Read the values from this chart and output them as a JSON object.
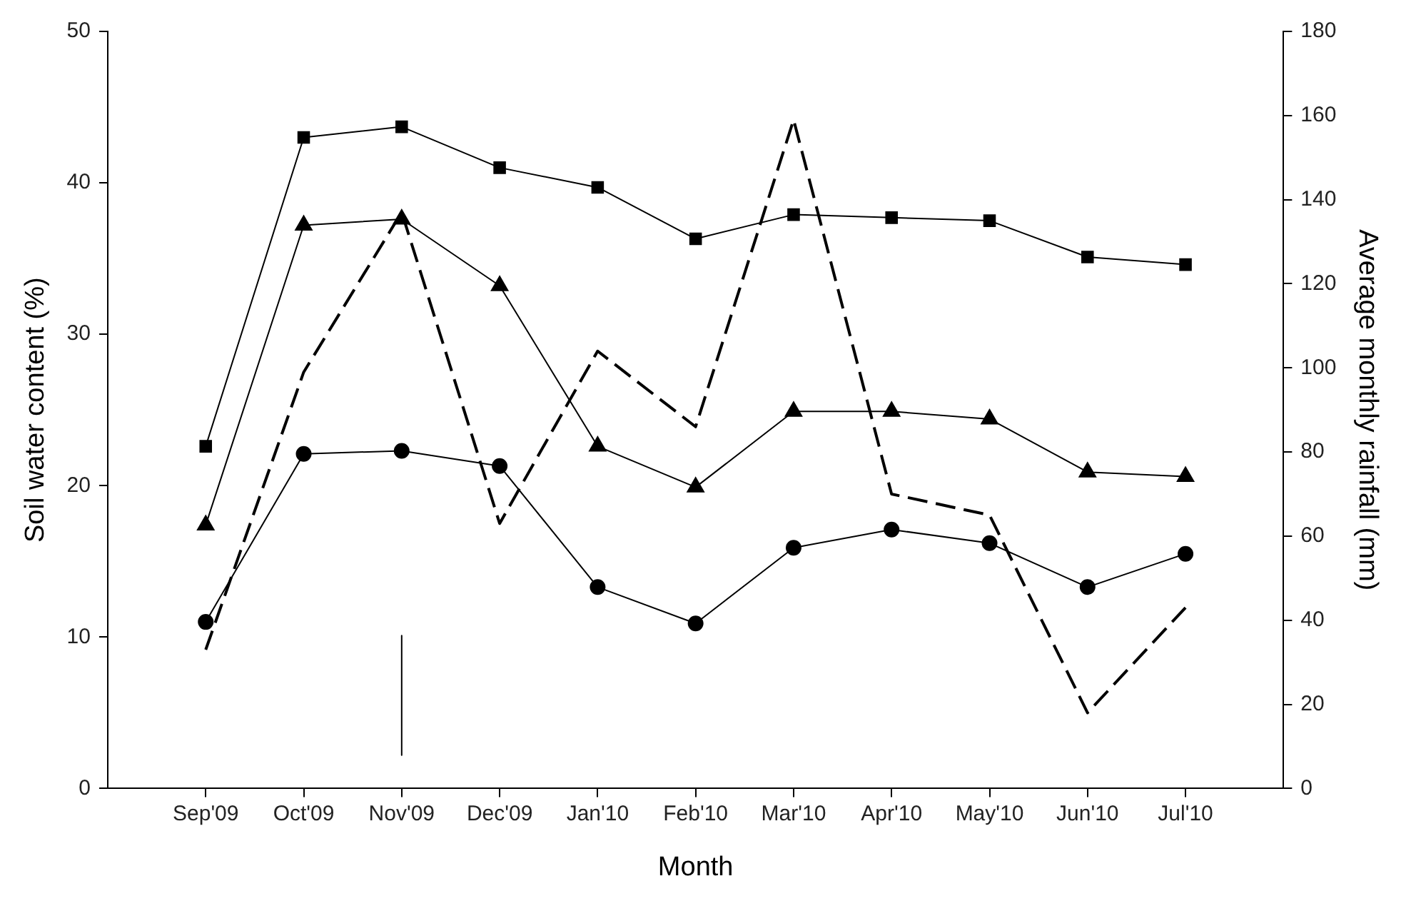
{
  "chart_data": {
    "type": "line",
    "xlabel": "Month",
    "ylabel": "Soil water content (%)",
    "y2label": "Average monthly rainfall (mm)",
    "categories": [
      "Sep'09",
      "Oct'09",
      "Nov'09",
      "Dec'09",
      "Jan'10",
      "Feb'10",
      "Mar'10",
      "Apr'10",
      "May'10",
      "Jun'10",
      "Jul'10"
    ],
    "series": [
      {
        "color": "#000000",
        "marker": "square",
        "line_style": "solid",
        "values": [
          22.6,
          43.0,
          43.7,
          41.0,
          39.7,
          36.3,
          37.9,
          37.7,
          37.5,
          35.1,
          34.6
        ]
      },
      {
        "color": "#000000",
        "marker": "triangle",
        "line_style": "solid",
        "values": [
          17.4,
          37.2,
          37.6,
          33.2,
          22.6,
          19.9,
          24.9,
          24.9,
          24.4,
          20.9,
          20.6
        ]
      },
      {
        "color": "#000000",
        "marker": "circle",
        "line_style": "solid",
        "values": [
          11.0,
          22.1,
          22.3,
          21.3,
          13.3,
          10.9,
          15.9,
          17.1,
          16.2,
          13.3,
          15.5
        ]
      },
      {
        "color": "#000000",
        "marker": "none",
        "line_style": "dashed",
        "axis": "y2",
        "values": [
          33,
          99,
          137,
          63,
          104,
          86,
          159,
          70,
          65,
          18,
          43
        ]
      },
      {
        "color": "#000000",
        "marker": "none",
        "line_style": "solid",
        "x": [
          "Nov'09",
          "Nov'09"
        ],
        "values": [
          10.1,
          2.2
        ]
      }
    ],
    "ylim": [
      0,
      50
    ],
    "yticks": [
      0,
      10,
      20,
      30,
      40,
      50
    ],
    "y2lim": [
      0,
      180
    ],
    "y2ticks": [
      0,
      20,
      40,
      60,
      80,
      100,
      120,
      140,
      160,
      180
    ],
    "grid": false,
    "legend": false
  }
}
